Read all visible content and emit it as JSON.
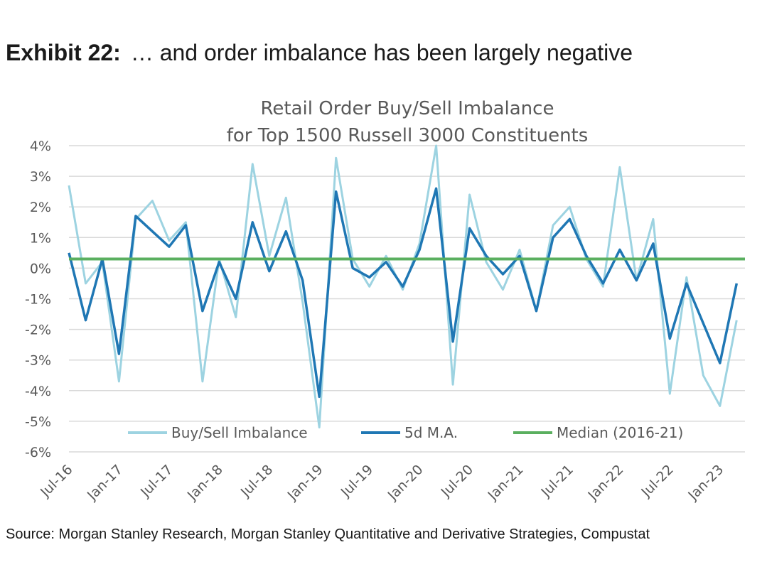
{
  "exhibit": {
    "number": "Exhibit 22:",
    "headline": "… and order imbalance has been largely negative"
  },
  "source": "Source: Morgan Stanley Research, Morgan Stanley Quantitative and Derivative Strategies, Compustat",
  "chart_data": {
    "type": "line",
    "title_line1": "Retail Order Buy/Sell Imbalance",
    "title_line2": "for Top 1500 Russell 3000 Constituents",
    "xlabel": "",
    "ylabel": "",
    "ylim": [
      -6,
      4
    ],
    "y_unit": "%",
    "y_ticks": [
      "4%",
      "3%",
      "2%",
      "1%",
      "0%",
      "-1%",
      "-2%",
      "-3%",
      "-4%",
      "-5%",
      "-6%"
    ],
    "x_ticks": [
      "Jul-16",
      "Jan-17",
      "Jul-17",
      "Jan-18",
      "Jul-18",
      "Jan-19",
      "Jul-19",
      "Jan-20",
      "Jul-20",
      "Jan-21",
      "Jul-21",
      "Jan-22",
      "Jul-22",
      "Jan-23"
    ],
    "grid": true,
    "legend_position": "bottom-inside",
    "colors": {
      "imbalance": "#9dd3e1",
      "ma": "#1f77b4",
      "median": "#5aaf5f"
    },
    "series": [
      {
        "name": "Buy/Sell Imbalance",
        "x": [
          "2016-07",
          "2016-09",
          "2016-11",
          "2017-01",
          "2017-03",
          "2017-05",
          "2017-07",
          "2017-09",
          "2017-11",
          "2018-01",
          "2018-03",
          "2018-05",
          "2018-07",
          "2018-09",
          "2018-11",
          "2019-01",
          "2019-03",
          "2019-05",
          "2019-07",
          "2019-09",
          "2019-11",
          "2020-01",
          "2020-03",
          "2020-05",
          "2020-07",
          "2020-09",
          "2020-11",
          "2021-01",
          "2021-03",
          "2021-05",
          "2021-07",
          "2021-09",
          "2021-11",
          "2022-01",
          "2022-03",
          "2022-05",
          "2022-07",
          "2022-09",
          "2022-11",
          "2023-01",
          "2023-03"
        ],
        "values": [
          2.7,
          -0.5,
          0.2,
          -3.7,
          1.6,
          2.2,
          0.9,
          1.5,
          -3.7,
          0.3,
          -1.6,
          3.4,
          0.4,
          2.3,
          -1.1,
          -5.2,
          3.6,
          0.3,
          -0.6,
          0.4,
          -0.7,
          0.8,
          4.0,
          -3.8,
          2.4,
          0.2,
          -0.7,
          0.6,
          -1.4,
          1.4,
          2.0,
          0.3,
          -0.6,
          3.3,
          -0.4,
          1.6,
          -4.1,
          -0.3,
          -3.5,
          -4.5,
          -1.7
        ]
      },
      {
        "name": "5d M.A.",
        "x": [
          "2016-07",
          "2016-09",
          "2016-11",
          "2017-01",
          "2017-03",
          "2017-05",
          "2017-07",
          "2017-09",
          "2017-11",
          "2018-01",
          "2018-03",
          "2018-05",
          "2018-07",
          "2018-09",
          "2018-11",
          "2019-01",
          "2019-03",
          "2019-05",
          "2019-07",
          "2019-09",
          "2019-11",
          "2020-01",
          "2020-03",
          "2020-05",
          "2020-07",
          "2020-09",
          "2020-11",
          "2021-01",
          "2021-03",
          "2021-05",
          "2021-07",
          "2021-09",
          "2021-11",
          "2022-01",
          "2022-03",
          "2022-05",
          "2022-07",
          "2022-09",
          "2022-11",
          "2023-01",
          "2023-03"
        ],
        "values": [
          0.5,
          -1.7,
          0.3,
          -2.8,
          1.7,
          1.2,
          0.7,
          1.4,
          -1.4,
          0.2,
          -1.0,
          1.5,
          -0.1,
          1.2,
          -0.4,
          -4.2,
          2.5,
          0.0,
          -0.3,
          0.2,
          -0.6,
          0.6,
          2.6,
          -2.4,
          1.3,
          0.4,
          -0.2,
          0.4,
          -1.4,
          1.0,
          1.6,
          0.4,
          -0.5,
          0.6,
          -0.4,
          0.8,
          -2.3,
          -0.5,
          -1.8,
          -3.1,
          -0.5
        ]
      },
      {
        "name": "Median (2016-21)",
        "values": [
          0.3
        ]
      }
    ]
  }
}
